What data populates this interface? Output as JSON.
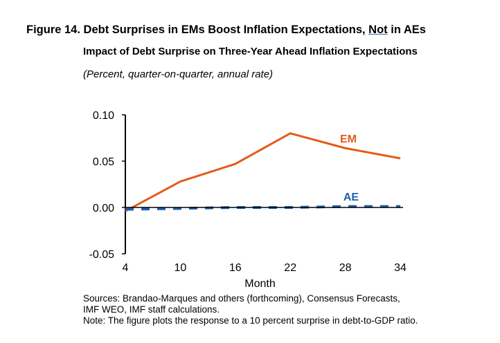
{
  "title_parts": {
    "before": "Figure 14. Debt Surprises in EMs Boost Inflation Expectations, ",
    "underlined": "Not",
    "after": " in AEs"
  },
  "subtitle": "Impact of Debt Surprise on Three-Year Ahead Inflation Expectations",
  "units": "(Percent, quarter-on-quarter, annual rate)",
  "notes": [
    "Sources: Brandao-Marques and others (forthcoming), Consensus Forecasts,",
    "IMF WEO, IMF staff calculations.",
    "Note: The figure plots the response to a 10 percent surprise in debt-to-GDP ratio."
  ],
  "chart_data": {
    "type": "line",
    "title": "Figure 14. Debt Surprises in EMs Boost Inflation Expectations, Not in AEs",
    "xlabel": "Month",
    "ylabel": "",
    "x": [
      4,
      10,
      16,
      22,
      28,
      34
    ],
    "xticks": [
      "4",
      "10",
      "16",
      "22",
      "28",
      "34"
    ],
    "yticks": [
      "0.10",
      "0.05",
      "0.00",
      "-0.05"
    ],
    "ytick_values": [
      0.1,
      0.05,
      0.0,
      -0.05
    ],
    "xlim": [
      4,
      34
    ],
    "ylim": [
      -0.05,
      0.1
    ],
    "grid": false,
    "series": [
      {
        "name": "EM",
        "color": "#e35b1a",
        "style": "solid",
        "values": [
          -0.004,
          0.028,
          0.047,
          0.08,
          0.064,
          0.053
        ]
      },
      {
        "name": "AE",
        "color": "#1f5fa6",
        "style": "dashed",
        "values": [
          -0.002,
          -0.001,
          0.0,
          0.0,
          0.001,
          0.001
        ]
      }
    ]
  }
}
